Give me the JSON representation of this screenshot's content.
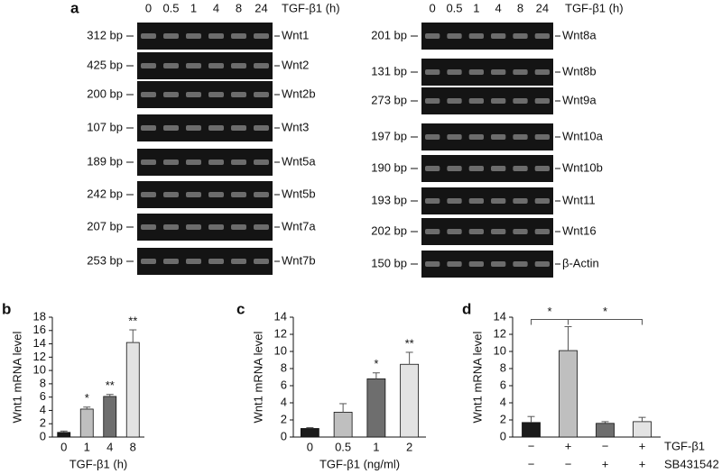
{
  "panel_labels": [
    "a",
    "b",
    "c",
    "d"
  ],
  "gels": [
    {
      "lanes_title": "TGF-β1 (h)",
      "lanes": [
        "0",
        "0.5",
        "1",
        "4",
        "8",
        "24"
      ],
      "rows": [
        {
          "size": "312 bp",
          "gene": "Wnt1"
        },
        {
          "size": "425 bp",
          "gene": "Wnt2"
        },
        {
          "size": "200 bp",
          "gene": "Wnt2b"
        },
        {
          "size": "107 bp",
          "gene": "Wnt3"
        },
        {
          "size": "189 bp",
          "gene": "Wnt5a"
        },
        {
          "size": "242 bp",
          "gene": "Wnt5b"
        },
        {
          "size": "207 bp",
          "gene": "Wnt7a"
        },
        {
          "size": "253 bp",
          "gene": "Wnt7b"
        }
      ]
    },
    {
      "lanes_title": "TGF-β1 (h)",
      "lanes": [
        "0",
        "0.5",
        "1",
        "4",
        "8",
        "24"
      ],
      "rows": [
        {
          "size": "201 bp",
          "gene": "Wnt8a"
        },
        {
          "size": "131 bp",
          "gene": "Wnt8b"
        },
        {
          "size": "273 bp",
          "gene": "Wnt9a"
        },
        {
          "size": "197 bp",
          "gene": "Wnt10a"
        },
        {
          "size": "190 bp",
          "gene": "Wnt10b"
        },
        {
          "size": "193 bp",
          "gene": "Wnt11"
        },
        {
          "size": "202 bp",
          "gene": "Wnt16"
        },
        {
          "size": "150 bp",
          "gene": "β-Actin"
        }
      ]
    }
  ],
  "chart_data": [
    {
      "type": "bar",
      "y_label": "Wnt1 mRNA level",
      "x_label": "TGF-β1 (h)",
      "categories": [
        "0",
        "1",
        "4",
        "8"
      ],
      "values": [
        0.7,
        4.2,
        6.1,
        14.2
      ],
      "errors": [
        0.2,
        0.3,
        0.3,
        1.9
      ],
      "colors": [
        "#1a1a1a",
        "#bfbfbf",
        "#6e6e6e",
        "#e3e3e3"
      ],
      "significance": [
        null,
        "*",
        "**",
        "**"
      ],
      "ylim": [
        0,
        18
      ],
      "yticks": [
        0,
        2,
        4,
        6,
        8,
        10,
        12,
        14,
        16,
        18
      ]
    },
    {
      "type": "bar",
      "y_label": "Wnt1 mRNA level",
      "x_label": "TGF-β1 (ng/ml)",
      "categories": [
        "0",
        "0.5",
        "1",
        "2"
      ],
      "values": [
        1.0,
        2.9,
        6.8,
        8.5
      ],
      "errors": [
        0.1,
        1.0,
        0.7,
        1.4
      ],
      "colors": [
        "#1a1a1a",
        "#bfbfbf",
        "#6e6e6e",
        "#e3e3e3"
      ],
      "significance": [
        null,
        null,
        "*",
        "**"
      ],
      "ylim": [
        0,
        14
      ],
      "yticks": [
        0,
        2,
        4,
        6,
        8,
        10,
        12,
        14
      ]
    },
    {
      "type": "bar",
      "y_label": "Wnt1 mRNA level",
      "values": [
        1.7,
        10.1,
        1.6,
        1.8
      ],
      "errors": [
        0.7,
        2.8,
        0.2,
        0.5
      ],
      "colors": [
        "#1a1a1a",
        "#bfbfbf",
        "#6e6e6e",
        "#e3e3e3"
      ],
      "factors": [
        {
          "name": "TGF-β1",
          "levels": [
            "−",
            "+",
            "−",
            "+"
          ]
        },
        {
          "name": "SB431542",
          "levels": [
            "−",
            "−",
            "+",
            "+"
          ]
        }
      ],
      "comparisons": [
        {
          "from": 0,
          "to": 1,
          "label": "*"
        },
        {
          "from": 1,
          "to": 3,
          "label": "*"
        }
      ],
      "ylim": [
        0,
        14
      ],
      "yticks": [
        0,
        2,
        4,
        6,
        8,
        10,
        12,
        14
      ]
    }
  ]
}
